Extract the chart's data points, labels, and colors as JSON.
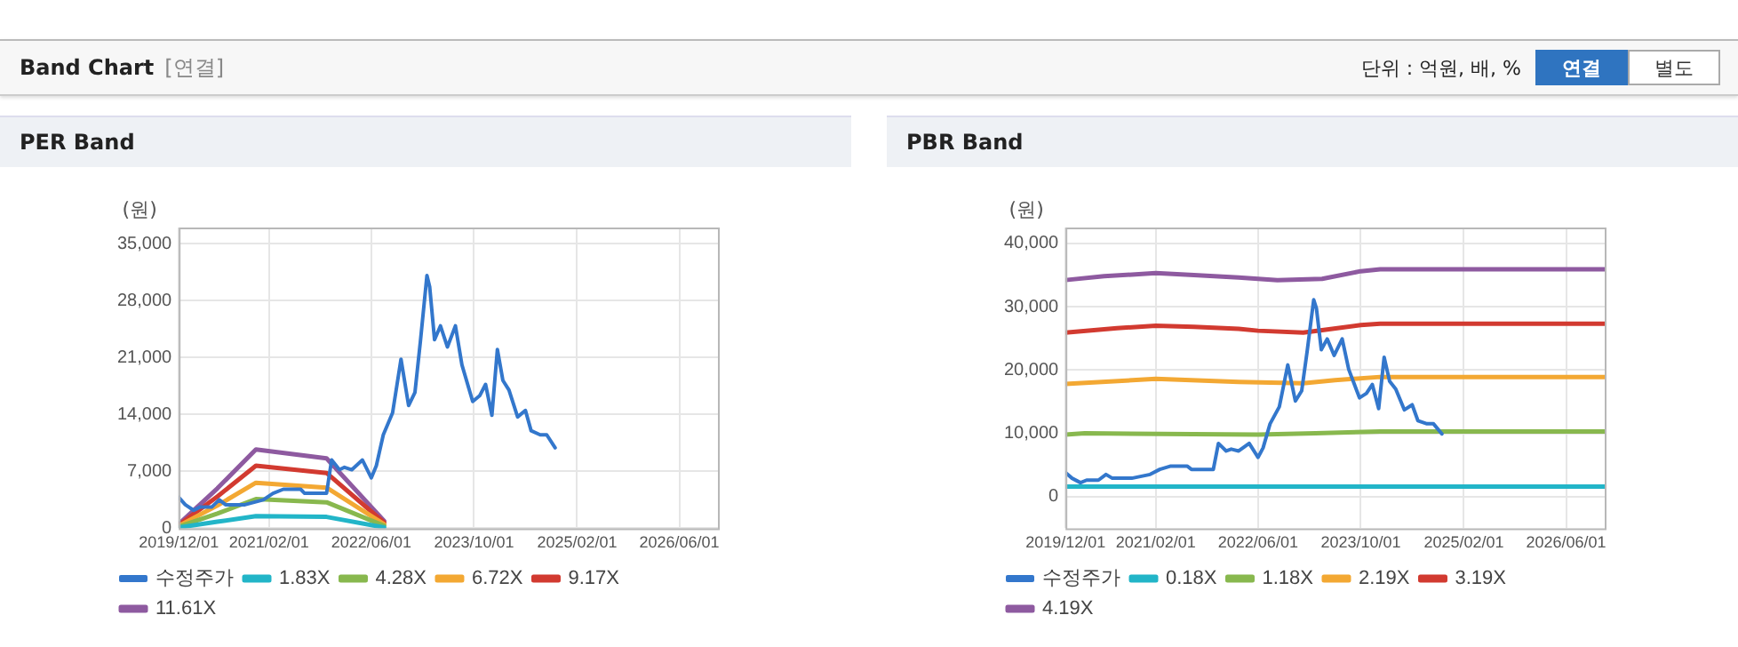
{
  "chart_data": [
    {
      "type": "other",
      "title": "Band Chart",
      "annotations": [
        "[연결]",
        "단위 : 억원, 배, %",
        "연결",
        "별도"
      ]
    },
    {
      "type": "line",
      "title": "PER Band",
      "ylabel": "(원)",
      "xlim": [
        "2019-12-01",
        "2026-12-01"
      ],
      "xticks": [
        {
          "value": "2019-12-01",
          "label": "2019/12/01"
        },
        {
          "value": "2021-02-01",
          "label": "2021/02/01"
        },
        {
          "value": "2022-06-01",
          "label": "2022/06/01"
        },
        {
          "value": "2023-10-01",
          "label": "2023/10/01"
        },
        {
          "value": "2025-02-01",
          "label": "2025/02/01"
        },
        {
          "value": "2026-06-01",
          "label": "2026/06/01"
        }
      ],
      "ylim": [
        0,
        37000
      ],
      "yticks": [
        {
          "value": 0,
          "label": "0"
        },
        {
          "value": 7000,
          "label": "7,000"
        },
        {
          "value": 14000,
          "label": "14,000"
        },
        {
          "value": 21000,
          "label": "21,000"
        },
        {
          "value": 28000,
          "label": "28,000"
        },
        {
          "value": 35000,
          "label": "35,000"
        }
      ],
      "grid": true,
      "legend": "bottom",
      "marker": "none",
      "line_style": "solid",
      "series": [
        {
          "name": "수정주가",
          "color": "#3377cc",
          "x": [
            "2019-12-01",
            "2020-01-01",
            "2020-02-10",
            "2020-03-10",
            "2020-05-05",
            "2020-06-10",
            "2020-07-10",
            "2020-10-10",
            "2021-01-05",
            "2021-02-20",
            "2021-04-10",
            "2021-07-01",
            "2021-07-20",
            "2021-11-01",
            "2021-11-25",
            "2022-01-01",
            "2022-01-25",
            "2022-03-01",
            "2022-04-20",
            "2022-06-01",
            "2022-06-25",
            "2022-07-28",
            "2022-09-10",
            "2022-10-20",
            "2022-11-25",
            "2022-12-25",
            "2023-01-20",
            "2023-02-20",
            "2023-03-05",
            "2023-03-28",
            "2023-04-25",
            "2023-05-28",
            "2023-07-05",
            "2023-08-05",
            "2023-09-25",
            "2023-10-28",
            "2023-11-25",
            "2023-12-25",
            "2024-01-20",
            "2024-02-15",
            "2024-03-15",
            "2024-04-25",
            "2024-06-01",
            "2024-06-28",
            "2024-08-10",
            "2024-09-10",
            "2024-10-20"
          ],
          "values": [
            3800,
            2900,
            2200,
            2600,
            2600,
            3500,
            2900,
            2900,
            3500,
            4300,
            4800,
            4800,
            4300,
            4300,
            8400,
            7200,
            7500,
            7200,
            8400,
            6200,
            7700,
            11500,
            14200,
            20800,
            15100,
            16700,
            23000,
            31100,
            29700,
            23200,
            24900,
            22300,
            24900,
            20100,
            15600,
            16300,
            17700,
            13900,
            22000,
            18200,
            17000,
            13700,
            14500,
            12000,
            11500,
            11500,
            9900
          ]
        },
        {
          "name": "1.83X",
          "color": "#22b5c8",
          "x": [
            "2019-12-01",
            "2020-06-01",
            "2020-12-01",
            "2021-11-01",
            "2022-08-01"
          ],
          "values": [
            100,
            800,
            1500,
            1400,
            100
          ]
        },
        {
          "name": "4.28X",
          "color": "#88b84e",
          "x": [
            "2019-12-01",
            "2020-06-01",
            "2020-12-01",
            "2021-11-01",
            "2022-08-01"
          ],
          "values": [
            200,
            1800,
            3600,
            3200,
            300
          ]
        },
        {
          "name": "6.72X",
          "color": "#f3a833",
          "x": [
            "2019-12-01",
            "2020-06-01",
            "2020-12-01",
            "2021-11-01",
            "2022-08-01"
          ],
          "values": [
            300,
            2800,
            5600,
            5000,
            500
          ]
        },
        {
          "name": "9.17X",
          "color": "#d23a30",
          "x": [
            "2019-12-01",
            "2020-06-01",
            "2020-12-01",
            "2021-11-01",
            "2022-08-01"
          ],
          "values": [
            400,
            3900,
            7700,
            6800,
            700
          ]
        },
        {
          "name": "11.61X",
          "color": "#8e5aa0",
          "x": [
            "2019-12-01",
            "2020-06-01",
            "2020-12-01",
            "2021-11-01",
            "2022-08-01"
          ],
          "values": [
            500,
            4900,
            9700,
            8600,
            900
          ]
        }
      ]
    },
    {
      "type": "line",
      "title": "PBR Band",
      "ylabel": "(원)",
      "xlim": [
        "2019-12-01",
        "2026-12-01"
      ],
      "xticks": [
        {
          "value": "2019-12-01",
          "label": "2019/12/01"
        },
        {
          "value": "2021-02-01",
          "label": "2021/02/01"
        },
        {
          "value": "2022-06-01",
          "label": "2022/06/01"
        },
        {
          "value": "2023-10-01",
          "label": "2023/10/01"
        },
        {
          "value": "2025-02-01",
          "label": "2025/02/01"
        },
        {
          "value": "2026-06-01",
          "label": "2026/06/01"
        }
      ],
      "ylim": [
        -5000,
        42500
      ],
      "yticks": [
        {
          "value": 0,
          "label": "0"
        },
        {
          "value": 10000,
          "label": "10,000"
        },
        {
          "value": 20000,
          "label": "20,000"
        },
        {
          "value": 30000,
          "label": "30,000"
        },
        {
          "value": 40000,
          "label": "40,000"
        }
      ],
      "grid": true,
      "legend": "bottom",
      "marker": "none",
      "line_style": "solid",
      "series": [
        {
          "name": "수정주가",
          "color": "#3377cc",
          "x": [
            "2019-12-01",
            "2020-01-01",
            "2020-02-10",
            "2020-03-10",
            "2020-05-05",
            "2020-06-10",
            "2020-07-10",
            "2020-10-10",
            "2021-01-05",
            "2021-02-20",
            "2021-04-10",
            "2021-07-01",
            "2021-07-20",
            "2021-11-01",
            "2021-11-25",
            "2022-01-01",
            "2022-01-25",
            "2022-03-01",
            "2022-04-20",
            "2022-06-01",
            "2022-06-25",
            "2022-07-28",
            "2022-09-10",
            "2022-10-20",
            "2022-11-25",
            "2022-12-25",
            "2023-01-20",
            "2023-02-20",
            "2023-03-05",
            "2023-03-28",
            "2023-04-25",
            "2023-05-28",
            "2023-07-05",
            "2023-08-05",
            "2023-09-25",
            "2023-10-28",
            "2023-11-25",
            "2023-12-25",
            "2024-01-20",
            "2024-02-15",
            "2024-03-15",
            "2024-04-25",
            "2024-06-01",
            "2024-06-28",
            "2024-08-10",
            "2024-09-10",
            "2024-10-20"
          ],
          "values": [
            3800,
            2900,
            2200,
            2600,
            2600,
            3500,
            2900,
            2900,
            3500,
            4300,
            4800,
            4800,
            4300,
            4300,
            8400,
            7200,
            7500,
            7200,
            8400,
            6200,
            7700,
            11500,
            14200,
            20800,
            15100,
            16700,
            23000,
            31100,
            29700,
            23200,
            24900,
            22300,
            24900,
            20100,
            15600,
            16300,
            17700,
            13900,
            22000,
            18200,
            17000,
            13700,
            14500,
            12000,
            11500,
            11500,
            9900
          ]
        },
        {
          "name": "0.18X",
          "color": "#22b5c8",
          "x": [
            "2019-12-01",
            "2026-12-01"
          ],
          "values": [
            1600,
            1600
          ]
        },
        {
          "name": "1.18X",
          "color": "#88b84e",
          "x": [
            "2019-12-01",
            "2020-03-01",
            "2022-06-01",
            "2023-03-01",
            "2024-01-01",
            "2026-12-01"
          ],
          "values": [
            9800,
            10000,
            9800,
            10000,
            10300,
            10300
          ]
        },
        {
          "name": "2.19X",
          "color": "#f3a833",
          "x": [
            "2019-12-01",
            "2021-02-01",
            "2022-03-01",
            "2023-01-01",
            "2023-06-01",
            "2024-01-01",
            "2026-12-01"
          ],
          "values": [
            17800,
            18600,
            18100,
            17900,
            18400,
            18900,
            18900
          ]
        },
        {
          "name": "3.19X",
          "color": "#d23a30",
          "x": [
            "2019-12-01",
            "2020-08-01",
            "2021-02-01",
            "2021-08-01",
            "2022-03-01",
            "2022-06-01",
            "2023-01-01",
            "2023-04-01",
            "2023-10-01",
            "2024-01-01",
            "2026-12-01"
          ],
          "values": [
            25900,
            26600,
            27000,
            26800,
            26500,
            26200,
            25900,
            26300,
            27100,
            27300,
            27300
          ]
        },
        {
          "name": "4.19X",
          "color": "#8e5aa0",
          "x": [
            "2019-12-01",
            "2020-06-01",
            "2021-02-01",
            "2021-08-01",
            "2022-03-01",
            "2022-09-01",
            "2023-04-01",
            "2023-10-01",
            "2024-01-01",
            "2026-12-01"
          ],
          "values": [
            34200,
            34800,
            35300,
            35000,
            34600,
            34200,
            34400,
            35600,
            35900,
            35900
          ]
        }
      ]
    }
  ]
}
